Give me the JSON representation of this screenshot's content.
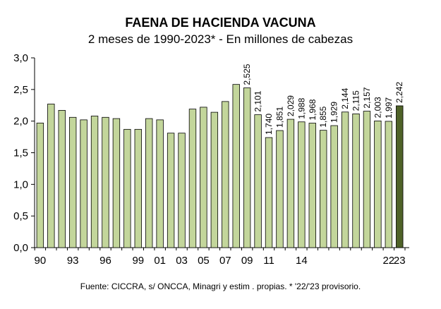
{
  "chart_data": {
    "type": "bar",
    "title": "FAENA DE HACIENDA VACUNA",
    "subtitle": "2 meses de 1990-2023* - En millones de cabezas",
    "footnote": "Fuente: CICCRA, s/ ONCCA, Minagri y estim . propias. * '22/'23 provisorio.",
    "xlabel": "",
    "ylabel": "",
    "ylim": [
      0,
      3
    ],
    "grid": false,
    "legend": "none",
    "y_ticks": [
      "0,0",
      "0,5",
      "1,0",
      "1,5",
      "2,0",
      "2,5",
      "3,0"
    ],
    "categories": [
      "1990",
      "1991",
      "1992",
      "1993",
      "1994",
      "1995",
      "1996",
      "1997",
      "1998",
      "1999",
      "2000",
      "2001",
      "2002",
      "2003",
      "2004",
      "2005",
      "2006",
      "2007",
      "2008",
      "2009",
      "2010",
      "2011",
      "2012",
      "2013",
      "2014",
      "2015",
      "2016",
      "2017",
      "2018",
      "2019",
      "2020",
      "2021",
      "2022",
      "2023"
    ],
    "x_tick_labels": [
      "90",
      "",
      "",
      "93",
      "",
      "",
      "96",
      "",
      "",
      "99",
      "",
      "01",
      "",
      "03",
      "",
      "05",
      "",
      "07",
      "",
      "09",
      "",
      "11",
      "",
      "",
      "14",
      "",
      "",
      "",
      "",
      "",
      "",
      "",
      "22",
      "23"
    ],
    "values": [
      1.97,
      2.27,
      2.17,
      2.06,
      2.02,
      2.08,
      2.06,
      2.04,
      1.87,
      1.87,
      2.04,
      2.02,
      1.81,
      1.81,
      2.19,
      2.22,
      2.14,
      2.31,
      2.58,
      2.525,
      2.101,
      1.74,
      1.851,
      2.029,
      1.988,
      1.968,
      1.855,
      1.929,
      2.144,
      2.115,
      2.157,
      2.003,
      1.997,
      2.242
    ],
    "data_labels": [
      "",
      "",
      "",
      "",
      "",
      "",
      "",
      "",
      "",
      "",
      "",
      "",
      "",
      "",
      "",
      "",
      "",
      "",
      "",
      "2,525",
      "2,101",
      "1,740",
      "1,851",
      "2,029",
      "1,988",
      "1,968",
      "1,855",
      "1,929",
      "2,144",
      "2,115",
      "2,157",
      "2,003",
      "1,997",
      "2,242"
    ],
    "colors": {
      "bar": "#c3d69b",
      "bar_highlight": "#4f6228",
      "bar_edge": "#000000"
    },
    "highlight_index": 33
  }
}
